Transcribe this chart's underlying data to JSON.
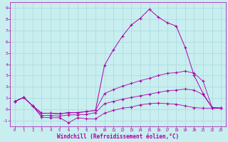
{
  "xlabel": "Windchill (Refroidissement éolien,°C)",
  "xlim": [
    -0.5,
    23.5
  ],
  "ylim": [
    -1.5,
    9.5
  ],
  "yticks": [
    -1,
    0,
    1,
    2,
    3,
    4,
    5,
    6,
    7,
    8,
    9
  ],
  "xticks": [
    0,
    1,
    2,
    3,
    4,
    5,
    6,
    7,
    8,
    9,
    10,
    11,
    12,
    13,
    14,
    15,
    16,
    17,
    18,
    19,
    20,
    21,
    22,
    23
  ],
  "bg_color": "#c8eef0",
  "grid_color": "#aad8dc",
  "line_color": "#aa00aa",
  "series1_x": [
    0,
    1,
    2,
    3,
    4,
    5,
    6,
    7,
    8,
    9,
    10,
    11,
    12,
    13,
    14,
    15,
    16,
    17,
    18,
    19,
    20,
    21,
    22,
    23
  ],
  "series1_y": [
    0.7,
    1.05,
    0.3,
    -0.7,
    -0.75,
    -0.75,
    -1.2,
    -0.75,
    -0.85,
    -0.85,
    -0.35,
    -0.1,
    0.1,
    0.2,
    0.4,
    0.5,
    0.55,
    0.5,
    0.45,
    0.3,
    0.15,
    0.1,
    0.1,
    0.1
  ],
  "series2_x": [
    0,
    1,
    2,
    3,
    4,
    5,
    6,
    7,
    8,
    9,
    10,
    11,
    12,
    13,
    14,
    15,
    16,
    17,
    18,
    19,
    20,
    21,
    22,
    23
  ],
  "series2_y": [
    0.7,
    1.05,
    0.3,
    -0.55,
    -0.55,
    -0.6,
    -0.5,
    -0.5,
    -0.45,
    -0.3,
    0.5,
    0.7,
    0.9,
    1.05,
    1.2,
    1.35,
    1.5,
    1.65,
    1.7,
    1.8,
    1.7,
    1.3,
    0.15,
    0.1
  ],
  "series3_x": [
    0,
    1,
    2,
    3,
    4,
    5,
    6,
    7,
    8,
    9,
    10,
    11,
    12,
    13,
    14,
    15,
    16,
    17,
    18,
    19,
    20,
    21,
    22,
    23
  ],
  "series3_y": [
    0.7,
    1.05,
    0.3,
    -0.35,
    -0.35,
    -0.4,
    -0.3,
    -0.3,
    -0.2,
    -0.1,
    1.4,
    1.75,
    2.05,
    2.3,
    2.55,
    2.75,
    3.0,
    3.2,
    3.25,
    3.4,
    3.2,
    2.5,
    0.15,
    0.1
  ],
  "series4_x": [
    0,
    1,
    2,
    3,
    4,
    5,
    6,
    7,
    8,
    9,
    10,
    11,
    12,
    13,
    14,
    15,
    16,
    17,
    18,
    19,
    20,
    21,
    22,
    23
  ],
  "series4_y": [
    0.7,
    1.05,
    0.3,
    -0.35,
    -0.35,
    -0.4,
    -0.3,
    -0.3,
    -0.2,
    -0.1,
    3.9,
    5.3,
    6.5,
    7.5,
    8.1,
    8.9,
    8.2,
    7.7,
    7.4,
    5.5,
    3.0,
    1.4,
    0.15,
    0.1
  ]
}
